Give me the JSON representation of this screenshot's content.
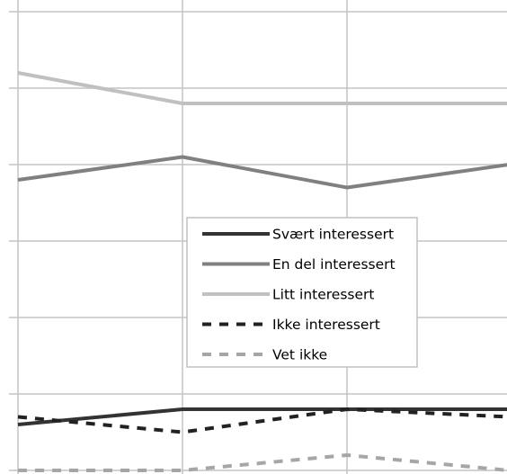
{
  "chart_data": {
    "type": "line",
    "x": [
      "1",
      "2",
      "3",
      "4"
    ],
    "ylim": [
      0,
      6
    ],
    "grid": true,
    "legend_position": "center",
    "series": [
      {
        "name": "Svært interessert",
        "values": [
          0.6,
          0.8,
          0.8,
          0.8
        ],
        "color": "#333333",
        "style": "solid"
      },
      {
        "name": "En del interessert",
        "values": [
          3.8,
          4.1,
          3.7,
          4.0
        ],
        "color": "#808080",
        "style": "solid"
      },
      {
        "name": "Litt interessert",
        "values": [
          5.2,
          4.8,
          4.8,
          4.8
        ],
        "color": "#c0c0c0",
        "style": "solid"
      },
      {
        "name": "Ikke interessert",
        "values": [
          0.7,
          0.5,
          0.8,
          0.7
        ],
        "color": "#222222",
        "style": "dashed"
      },
      {
        "name": "Vet ikke",
        "values": [
          0.0,
          0.0,
          0.2,
          0.0
        ],
        "color": "#a6a6a6",
        "style": "dashed"
      }
    ]
  }
}
